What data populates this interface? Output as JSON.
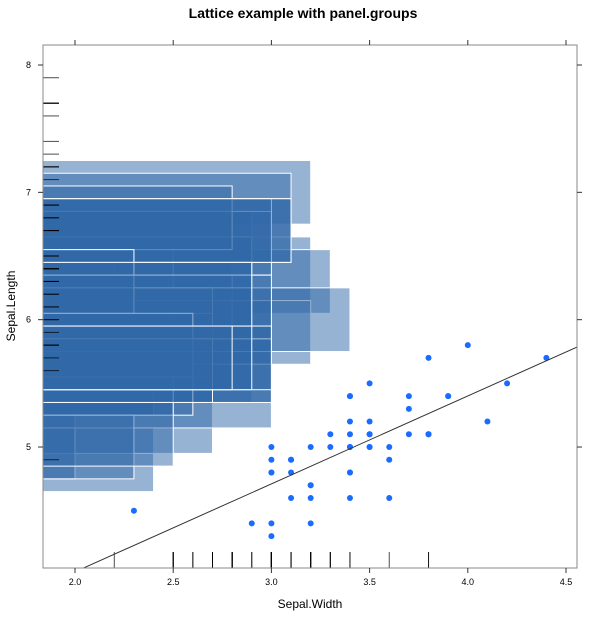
{
  "chart_data": {
    "type": "scatter",
    "title": "Lattice example with panel.groups",
    "xlabel": "Sepal.Width",
    "ylabel": "Sepal.Length",
    "xlim": [
      1.837,
      4.556
    ],
    "ylim": [
      4.05,
      8.157
    ],
    "xticks": [
      2.0,
      2.5,
      3.0,
      3.5,
      4.0,
      4.5
    ],
    "xtick_labels": [
      "2.0",
      "2.5",
      "3.0",
      "3.5",
      "4.0",
      "4.5"
    ],
    "yticks": [
      5,
      6,
      7,
      8
    ],
    "ytick_labels": [
      "5",
      "6",
      "7",
      "8"
    ],
    "grid": false,
    "colors": {
      "points": "#1a6cff",
      "rects": "#2f67a8",
      "rect_border": "#ffffff",
      "rug": "#000000",
      "line": "#333333",
      "frame": "#888888"
    },
    "points": {
      "name": "points",
      "x": [
        3.5,
        3.0,
        3.2,
        3.1,
        3.6,
        3.9,
        3.4,
        3.4,
        2.9,
        3.1,
        3.7,
        3.4,
        3.0,
        3.0,
        4.0,
        4.4,
        3.9,
        3.5,
        3.8,
        3.8,
        3.4,
        3.7,
        3.6,
        3.3,
        3.4,
        3.0,
        3.4,
        3.5,
        3.4,
        3.2,
        3.1,
        3.4,
        4.1,
        4.2,
        3.1,
        3.2,
        3.5,
        3.6,
        3.0,
        3.4,
        3.5,
        2.3,
        3.2,
        3.5,
        3.8,
        3.0,
        3.8,
        3.2,
        3.7,
        3.3
      ],
      "y": [
        5.1,
        4.9,
        4.7,
        4.6,
        5.0,
        5.4,
        4.6,
        5.0,
        4.4,
        4.9,
        5.4,
        4.8,
        4.8,
        4.3,
        5.8,
        5.7,
        5.4,
        5.1,
        5.7,
        5.1,
        5.4,
        5.1,
        4.6,
        5.1,
        4.8,
        5.0,
        5.0,
        5.2,
        5.2,
        4.7,
        4.8,
        5.4,
        5.2,
        5.5,
        4.9,
        5.0,
        5.5,
        4.9,
        4.4,
        5.1,
        5.0,
        4.5,
        4.4,
        5.0,
        5.1,
        4.8,
        5.1,
        4.6,
        5.3,
        5.0
      ]
    },
    "regression_line": {
      "intercept": 2.639,
      "slope": 0.6905
    },
    "rects": {
      "name": "rectangles",
      "half_height": 0.25,
      "x": [
        3.2,
        3.2,
        3.1,
        2.3,
        2.8,
        2.8,
        3.3,
        2.4,
        2.9,
        2.7,
        2.0,
        3.0,
        2.2,
        2.9,
        2.9,
        3.1,
        3.0,
        2.7,
        2.2,
        2.5,
        3.2,
        2.8,
        2.5,
        2.8,
        2.9,
        3.0,
        2.8,
        3.0,
        2.9,
        2.6,
        2.4,
        2.4,
        2.7,
        2.7,
        3.0,
        3.4,
        3.1,
        2.3,
        3.0,
        2.5,
        2.6,
        3.0,
        2.6,
        2.3,
        2.7,
        3.0,
        2.9,
        2.9,
        2.5,
        2.8
      ],
      "y": [
        7.0,
        6.4,
        6.9,
        5.5,
        6.5,
        5.7,
        6.3,
        4.9,
        6.6,
        5.2,
        5.0,
        5.9,
        6.0,
        6.1,
        5.6,
        6.7,
        5.6,
        5.8,
        6.2,
        5.6,
        5.9,
        6.1,
        6.3,
        6.1,
        6.4,
        6.6,
        6.8,
        6.7,
        6.0,
        5.7,
        5.5,
        5.5,
        5.8,
        6.0,
        5.4,
        6.0,
        6.7,
        6.3,
        5.6,
        5.5,
        5.5,
        6.1,
        5.8,
        5.0,
        5.6,
        5.7,
        5.7,
        6.2,
        5.1,
        5.7
      ]
    },
    "rug": {
      "name": "rug",
      "x": [
        3.3,
        2.7,
        3.0,
        2.9,
        3.0,
        3.0,
        2.5,
        2.9,
        2.5,
        3.6,
        3.2,
        2.7,
        3.0,
        2.5,
        2.8,
        3.2,
        3.0,
        3.8,
        2.6,
        2.2,
        3.2,
        2.8,
        2.8,
        2.7,
        3.3,
        3.2,
        2.8,
        3.0,
        2.8,
        3.0,
        2.8,
        3.8,
        2.8,
        2.8,
        2.6,
        3.0,
        3.4,
        3.1,
        3.0,
        3.1,
        3.1,
        3.1,
        2.7,
        3.2,
        3.3,
        3.0,
        2.5,
        3.0,
        3.4,
        3.0
      ],
      "y": [
        6.3,
        5.8,
        7.1,
        6.3,
        6.5,
        7.6,
        4.9,
        7.3,
        6.7,
        7.2,
        6.5,
        6.4,
        6.8,
        5.7,
        5.8,
        6.4,
        6.5,
        7.7,
        7.7,
        6.0,
        6.9,
        5.6,
        7.7,
        6.3,
        6.7,
        7.2,
        6.2,
        6.1,
        6.4,
        7.2,
        7.4,
        7.9,
        6.4,
        6.3,
        6.1,
        7.7,
        6.3,
        6.4,
        6.0,
        6.9,
        6.7,
        6.9,
        5.8,
        6.8,
        6.7,
        6.7,
        6.3,
        6.5,
        6.2,
        5.9
      ]
    }
  }
}
